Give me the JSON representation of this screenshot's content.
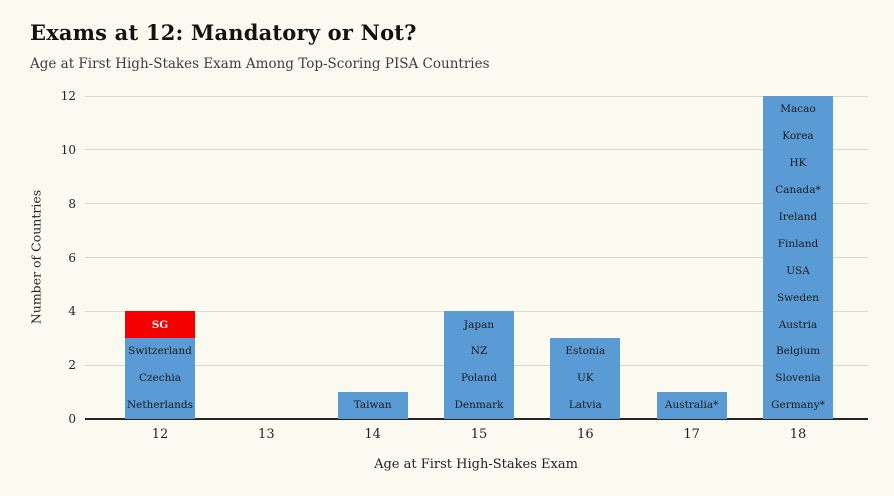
{
  "header": {
    "title": "Exams at 12: Mandatory or Not?",
    "subtitle": "Age at First High-Stakes Exam Among Top-Scoring PISA Countries"
  },
  "chart_data": {
    "type": "bar",
    "stacked": true,
    "title": "Exams at 12: Mandatory or Not?",
    "subtitle": "Age at First High-Stakes Exam Among Top-Scoring PISA Countries",
    "xlabel": "Age at First High-Stakes Exam",
    "ylabel": "Number of Countries",
    "categories": [
      "12",
      "13",
      "14",
      "15",
      "16",
      "17",
      "18"
    ],
    "values": [
      4,
      0,
      1,
      4,
      3,
      1,
      12
    ],
    "stacks": [
      [
        "Netherlands",
        "Czechia",
        "Switzerland",
        "SG"
      ],
      [],
      [
        "Taiwan"
      ],
      [
        "Denmark",
        "Poland",
        "NZ",
        "Japan"
      ],
      [
        "Latvia",
        "UK",
        "Estonia"
      ],
      [
        "Australia*"
      ],
      [
        "Germany*",
        "Slovenia",
        "Belgium",
        "Austria",
        "Sweden",
        "USA",
        "Finland",
        "Ireland",
        "Canada*",
        "HK",
        "Korea",
        "Macao"
      ]
    ],
    "highlight_segment": "SG",
    "ylim": [
      0,
      12
    ],
    "yticks": [
      0,
      2,
      4,
      6,
      8,
      10,
      12
    ],
    "grid": "horizontal",
    "legend": "none",
    "colors": {
      "bar": "#5B9BD5",
      "highlight": "#F40000",
      "grid": "#DAD8CE",
      "axis": "#262626",
      "background": "#FBFAF0",
      "label": "#1a1a1a",
      "highlight_label": "#ffffff"
    }
  }
}
